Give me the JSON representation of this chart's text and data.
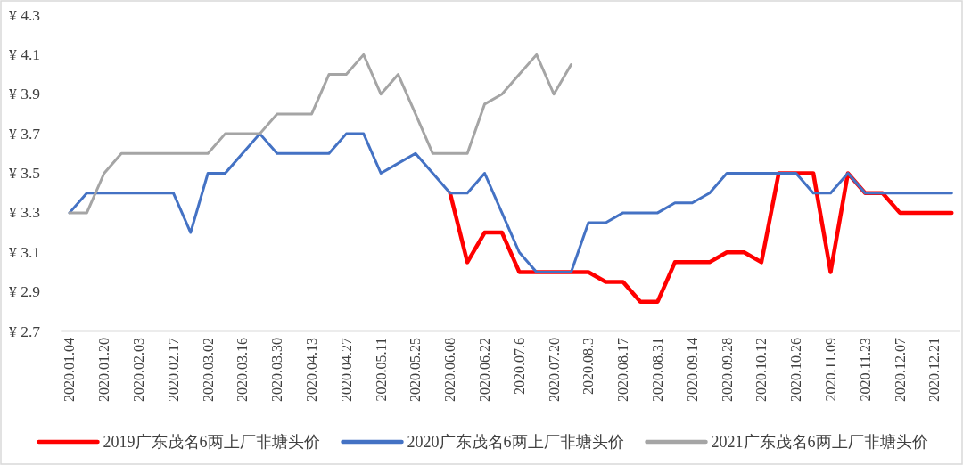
{
  "chart_data": {
    "type": "line",
    "categories": [
      "2020.01.04",
      null,
      "2020.01.20",
      null,
      "2020.02.03",
      null,
      "2020.02.17",
      null,
      "2020.03.02",
      null,
      "2020.03.16",
      null,
      "2020.03.30",
      null,
      "2020.04.13",
      null,
      "2020.04.27",
      null,
      "2020.05.11",
      null,
      "2020.05.25",
      null,
      "2020.06.08",
      null,
      "2020.06.22",
      null,
      "2020.07.6",
      null,
      "2020.07.20",
      null,
      "2020.08.3",
      null,
      "2020.08.17",
      null,
      "2020.08.31",
      null,
      "2020.09.14",
      null,
      "2020.09.28",
      null,
      "2020.10.12",
      null,
      "2020.10.26",
      null,
      "2020.11.09",
      null,
      "2020.11.23",
      null,
      "2020.12.07",
      null,
      "2020.12.21",
      null
    ],
    "series": [
      {
        "name": "2019广东茂名6两上厂非塘头价",
        "color": "#ff0000",
        "values": [
          null,
          null,
          null,
          null,
          null,
          null,
          null,
          null,
          null,
          null,
          null,
          null,
          null,
          null,
          null,
          null,
          null,
          null,
          null,
          null,
          null,
          null,
          3.4,
          3.05,
          3.2,
          3.2,
          3.0,
          3.0,
          3.0,
          3.0,
          3.0,
          2.95,
          2.95,
          2.85,
          2.85,
          3.05,
          3.05,
          3.05,
          3.1,
          3.1,
          3.05,
          3.5,
          3.5,
          3.5,
          3.0,
          3.5,
          3.4,
          3.4,
          3.3,
          3.3,
          3.3,
          3.3
        ]
      },
      {
        "name": "2020广东茂名6两上厂非塘头价",
        "color": "#4472c4",
        "values": [
          3.3,
          3.4,
          3.4,
          3.4,
          3.4,
          3.4,
          3.4,
          3.2,
          3.5,
          3.5,
          3.6,
          3.7,
          3.6,
          3.6,
          3.6,
          3.6,
          3.7,
          3.7,
          3.5,
          3.55,
          3.6,
          3.5,
          3.4,
          3.4,
          3.5,
          3.3,
          3.1,
          3.0,
          3.0,
          3.0,
          3.25,
          3.25,
          3.3,
          3.3,
          3.3,
          3.35,
          3.35,
          3.4,
          3.5,
          3.5,
          3.5,
          3.5,
          3.5,
          3.4,
          3.4,
          3.5,
          3.4,
          3.4,
          3.4,
          3.4,
          3.4,
          3.4
        ]
      },
      {
        "name": "2021广东茂名6两上厂非塘头价",
        "color": "#a5a5a5",
        "values": [
          3.3,
          3.3,
          3.5,
          3.6,
          3.6,
          3.6,
          3.6,
          3.6,
          3.6,
          3.7,
          3.7,
          3.7,
          3.8,
          3.8,
          3.8,
          4.0,
          4.0,
          4.1,
          3.9,
          4.0,
          3.8,
          3.6,
          3.6,
          3.6,
          3.85,
          3.9,
          4.0,
          4.1,
          3.9,
          4.05,
          null,
          null,
          null,
          null,
          null,
          null,
          null,
          null,
          null,
          null,
          null,
          null,
          null,
          null,
          null,
          null,
          null,
          null,
          null,
          null,
          null,
          null
        ]
      }
    ],
    "ylim": [
      2.7,
      4.3
    ],
    "yticks": [
      {
        "value": 2.7,
        "label": "¥ 2.7"
      },
      {
        "value": 2.9,
        "label": "¥ 2.9"
      },
      {
        "value": 3.1,
        "label": "¥ 3.1"
      },
      {
        "value": 3.3,
        "label": "¥ 3.3"
      },
      {
        "value": 3.5,
        "label": "¥ 3.5"
      },
      {
        "value": 3.7,
        "label": "¥ 3.7"
      },
      {
        "value": 3.9,
        "label": "¥ 3.9"
      },
      {
        "value": 4.1,
        "label": "¥ 4.1"
      },
      {
        "value": 4.3,
        "label": "¥ 4.3"
      }
    ],
    "legend": "bottom",
    "marker": "none",
    "line_style": "solid"
  }
}
